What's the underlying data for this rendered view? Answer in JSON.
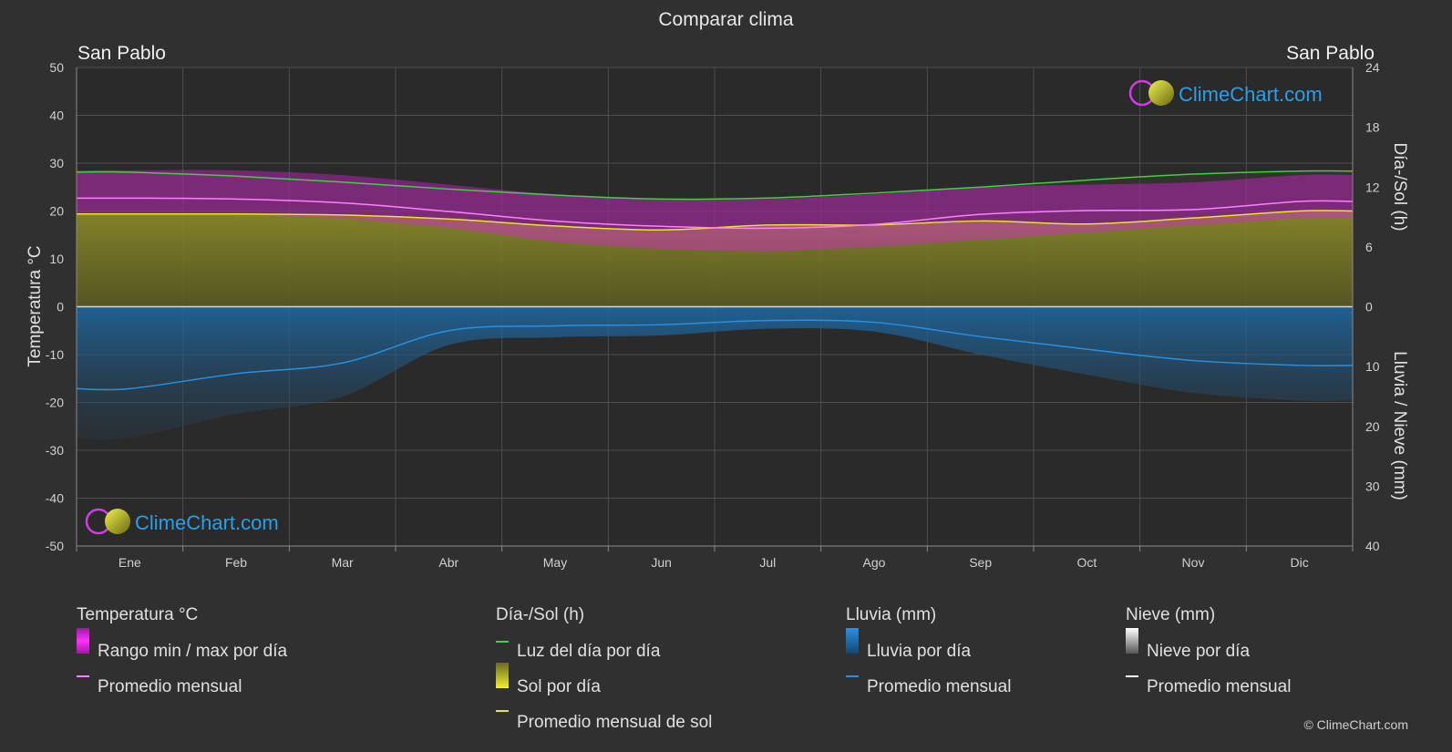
{
  "title": "Comparar clima",
  "location_left": "San Pablo",
  "location_right": "San Pablo",
  "watermark": "ClimeChart.com",
  "copyright": "© ClimeChart.com",
  "colors": {
    "background": "#303030",
    "temp_range": "#e020e0",
    "temp_avg": "#ff80ff",
    "daylight": "#40d040",
    "sun_fill": "#a0a020",
    "sun_avg": "#e8e820",
    "rain_fill": "#1a78c0",
    "rain_avg": "#2a8fe0",
    "snow": "#ffffff",
    "brand": "#2a9fe8"
  },
  "legend": {
    "temperature": {
      "heading": "Temperatura °C",
      "items": [
        "Rango min / max por día",
        "Promedio mensual"
      ]
    },
    "sun": {
      "heading": "Día-/Sol (h)",
      "items": [
        "Luz del día por día",
        "Sol por día",
        "Promedio mensual de sol"
      ]
    },
    "rain": {
      "heading": "Lluvia (mm)",
      "items": [
        "Lluvia por día",
        "Promedio mensual"
      ]
    },
    "snow": {
      "heading": "Nieve (mm)",
      "items": [
        "Nieve por día",
        "Promedio mensual"
      ]
    }
  },
  "chart_data": {
    "type": "line",
    "categories": [
      "Ene",
      "Feb",
      "Mar",
      "Abr",
      "May",
      "Jun",
      "Jul",
      "Ago",
      "Sep",
      "Oct",
      "Nov",
      "Dic"
    ],
    "y_left": {
      "label": "Temperatura °C",
      "range": [
        -50,
        50
      ],
      "ticks": [
        50,
        40,
        30,
        20,
        10,
        0,
        -10,
        -20,
        -30,
        -40,
        -50
      ]
    },
    "y_right_top": {
      "label": "Día-/Sol (h)",
      "range": [
        0,
        24
      ],
      "ticks": [
        24,
        18,
        12,
        6,
        0
      ]
    },
    "y_right_bottom": {
      "label": "Lluvia / Nieve (mm)",
      "range": [
        0,
        40
      ],
      "ticks": [
        0,
        10,
        20,
        30,
        40
      ]
    },
    "grid": true,
    "series": [
      {
        "name": "Luz del día por día",
        "unit": "h",
        "values": [
          13.5,
          13.1,
          12.5,
          11.8,
          11.2,
          10.8,
          10.9,
          11.4,
          12.0,
          12.7,
          13.3,
          13.6
        ]
      },
      {
        "name": "Promedio mensual de sol",
        "unit": "h",
        "values": [
          9.3,
          9.3,
          9.2,
          8.8,
          8.1,
          7.7,
          8.2,
          8.2,
          8.6,
          8.3,
          8.9,
          9.6
        ]
      },
      {
        "name": "Promedio mensual",
        "unit": "°C",
        "values": [
          22.7,
          22.5,
          21.7,
          19.9,
          17.9,
          16.8,
          16.4,
          17.2,
          19.3,
          20.1,
          20.3,
          22.0
        ]
      },
      {
        "name": "Temperatura máx. diaria (aprox.)",
        "unit": "°C",
        "values": [
          28.5,
          28.5,
          27.5,
          25.5,
          23.5,
          22.5,
          22.5,
          23.5,
          25,
          25.5,
          26,
          27.5
        ]
      },
      {
        "name": "Temperatura mín. diaria (aprox.)",
        "unit": "°C",
        "values": [
          19.5,
          19.5,
          18.5,
          16.5,
          13.5,
          12,
          11.5,
          12.5,
          14,
          15.5,
          17,
          18.5
        ]
      },
      {
        "name": "Lluvia promedio mensual",
        "unit": "mm",
        "values": [
          13.7,
          11.2,
          9.4,
          4.0,
          3.2,
          3.0,
          2.3,
          2.6,
          5.0,
          7.1,
          9.0,
          9.8
        ]
      },
      {
        "name": "Nieve promedio mensual",
        "unit": "mm",
        "values": [
          0,
          0,
          0,
          0,
          0,
          0,
          0,
          0,
          0,
          0,
          0,
          0
        ]
      }
    ]
  }
}
